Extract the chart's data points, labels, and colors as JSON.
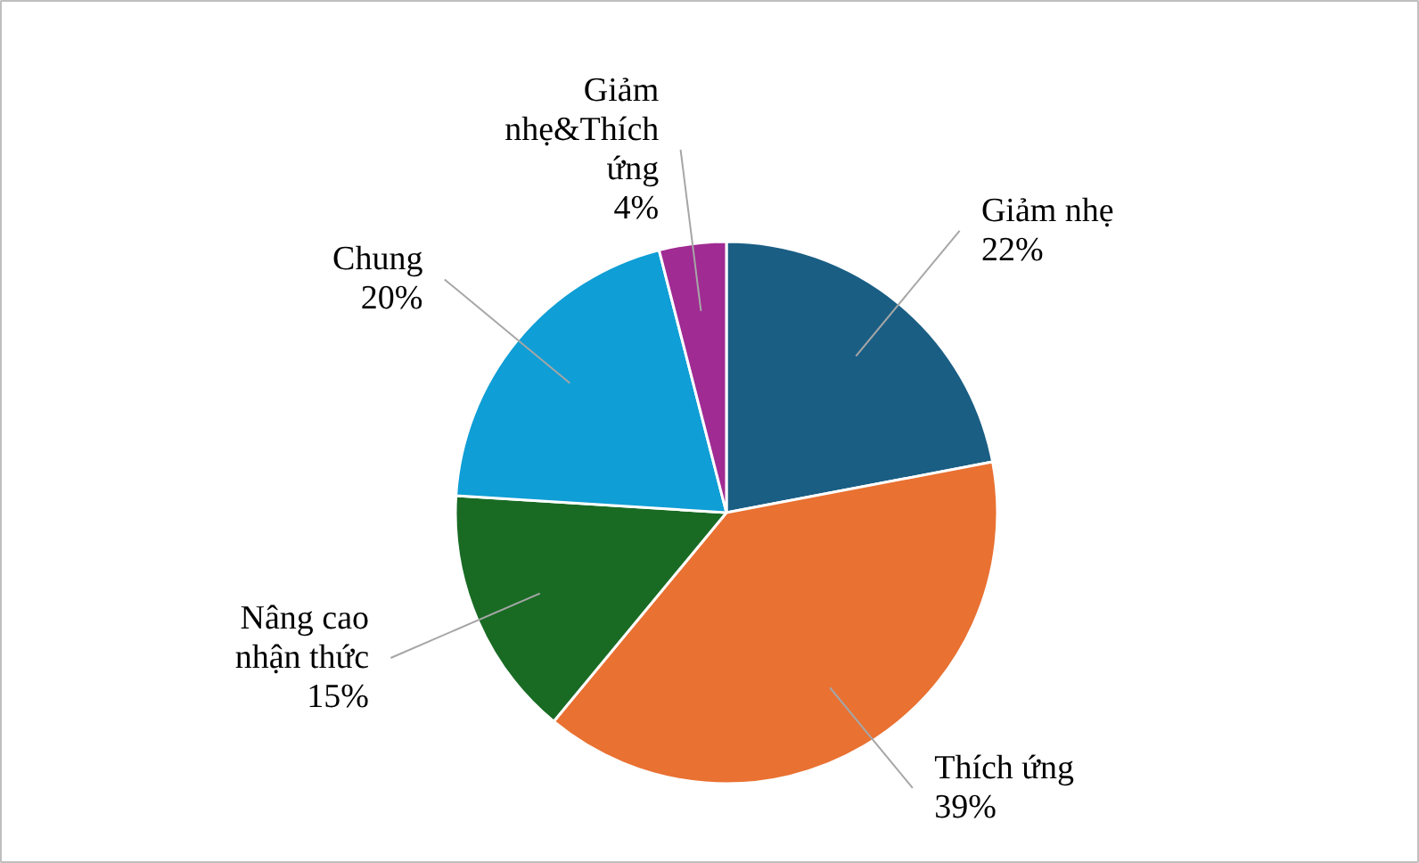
{
  "chart_data": {
    "type": "pie",
    "categories": [
      "Giảm nhẹ",
      "Thích ứng",
      "Nâng cao nhận thức",
      "Chung",
      "Giảm nhẹ&Thích ứng"
    ],
    "values": [
      22,
      39,
      15,
      20,
      4
    ],
    "colors": [
      "#1a5e84",
      "#e97132",
      "#196b24",
      "#0f9ed5",
      "#a02b93"
    ],
    "value_labels": [
      "22%",
      "39%",
      "15%",
      "20%",
      "4%"
    ]
  }
}
